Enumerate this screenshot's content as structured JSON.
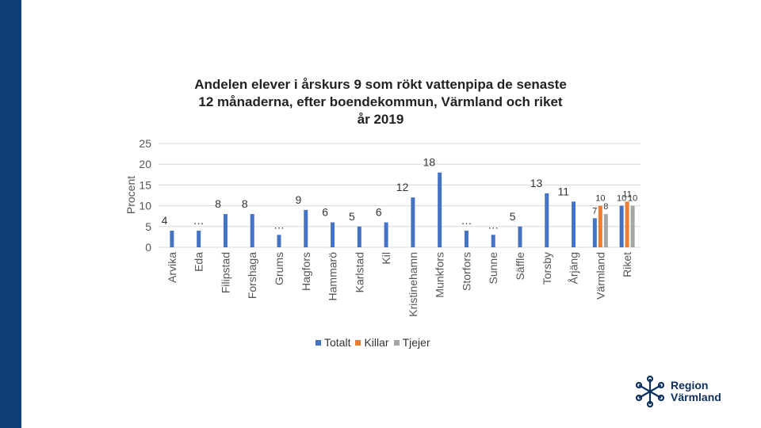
{
  "chart_data": {
    "type": "bar",
    "title_lines": [
      "Andelen elever i årskurs 9 som rökt vattenpipa de senaste",
      "12 månaderna, efter boendekommun, Värmland och riket",
      "år 2019"
    ],
    "ylabel": "Procent",
    "xlabel": "",
    "ylim": [
      0,
      25
    ],
    "yticks": [
      0,
      5,
      10,
      15,
      20,
      25
    ],
    "grid": true,
    "legend_position": "bottom",
    "categories": [
      "Arvika",
      "Eda",
      "Filipstad",
      "Forshaga",
      "Grums",
      "Hagfors",
      "Hammarö",
      "Karlstad",
      "Kil",
      "Kristinehamn",
      "Munkfors",
      "Storfors",
      "Sunne",
      "Säffle",
      "Torsby",
      "Årjäng",
      "Värmland",
      "Riket"
    ],
    "series": [
      {
        "name": "Totalt",
        "color": "#4472c4",
        "values": [
          4,
          4,
          8,
          8,
          3,
          9,
          6,
          5,
          6,
          12,
          18,
          4,
          3,
          5,
          13,
          11,
          7,
          10
        ],
        "labels": [
          "4",
          "…",
          "8",
          "8",
          "…",
          "9",
          "6",
          "5",
          "6",
          "12",
          "18",
          "…",
          "…",
          "5",
          "13",
          "11",
          "7",
          "10"
        ]
      },
      {
        "name": "Killar",
        "color": "#ed7d31",
        "values": [
          null,
          null,
          null,
          null,
          null,
          null,
          null,
          null,
          null,
          null,
          null,
          null,
          null,
          null,
          null,
          null,
          10,
          11
        ],
        "labels": [
          "",
          "",
          "",
          "",
          "",
          "",
          "",
          "",
          "",
          "",
          "",
          "",
          "",
          "",
          "",
          "",
          "10",
          "11"
        ]
      },
      {
        "name": "Tjejer",
        "color": "#a5a5a5",
        "values": [
          null,
          null,
          null,
          null,
          null,
          null,
          null,
          null,
          null,
          null,
          null,
          null,
          null,
          null,
          null,
          null,
          8,
          10
        ],
        "labels": [
          "",
          "",
          "",
          "",
          "",
          "",
          "",
          "",
          "",
          "",
          "",
          "",
          "",
          "",
          "",
          "",
          "8",
          "10"
        ]
      }
    ]
  },
  "logo": {
    "line1": "Region",
    "line2": "Värmland",
    "color": "#0d2f5e"
  }
}
